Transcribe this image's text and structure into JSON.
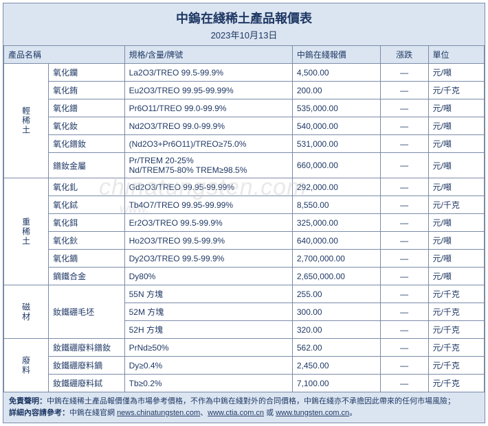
{
  "title": "中鎢在綫稀土產品報價表",
  "date": "2023年10月13日",
  "columns": [
    "產品名稱",
    "規格/含量/牌號",
    "中鎢在綫報價",
    "漲跌",
    "單位"
  ],
  "watermark1": "chinatungsten.com",
  "watermark2": "www.",
  "categories": [
    {
      "label": "輕稀土",
      "rows": [
        {
          "name": "氧化鑭",
          "spec": "La2O3/TREO 99.5-99.9%",
          "price": "4,500.00",
          "trend": "—",
          "unit": "元/噸"
        },
        {
          "name": "氧化銪",
          "spec": "Eu2O3/TREO 99.95-99.99%",
          "price": "200.00",
          "trend": "—",
          "unit": "元/千克"
        },
        {
          "name": "氧化鐠",
          "spec": "Pr6O11/TREO 99.0-99.9%",
          "price": "535,000.00",
          "trend": "—",
          "unit": "元/噸"
        },
        {
          "name": "氧化釹",
          "spec": "Nd2O3/TREO 99.0-99.9%",
          "price": "540,000.00",
          "trend": "—",
          "unit": "元/噸"
        },
        {
          "name": "氧化鐠釹",
          "spec": "(Nd2O3+Pr6O11)/TREO≥75.0%",
          "price": "531,000.00",
          "trend": "—",
          "unit": "元/噸"
        },
        {
          "name": "鐠釹金屬",
          "spec": "Pr/TREM 20-25%\nNd/TREM75-80% TREM≥98.5%",
          "price": "660,000.00",
          "trend": "—",
          "unit": "元/噸"
        }
      ]
    },
    {
      "label": "重稀土",
      "rows": [
        {
          "name": "氧化釓",
          "spec": "Gd2O3/TREO 99.95-99.99%",
          "price": "292,000.00",
          "trend": "—",
          "unit": "元/噸"
        },
        {
          "name": "氧化鋱",
          "spec": "Tb4O7/TREO 99.95-99.99%",
          "price": "8,550.00",
          "trend": "—",
          "unit": "元/千克"
        },
        {
          "name": "氧化鉺",
          "spec": "Er2O3/TREO 99.5-99.9%",
          "price": "325,000.00",
          "trend": "—",
          "unit": "元/噸"
        },
        {
          "name": "氧化鈥",
          "spec": "Ho2O3/TREO 99.5-99.9%",
          "price": "640,000.00",
          "trend": "—",
          "unit": "元/噸"
        },
        {
          "name": "氧化鏑",
          "spec": "Dy2O3/TREO 99.5-99.9%",
          "price": "2,700,000.00",
          "trend": "—",
          "unit": "元/噸"
        },
        {
          "name": "鏑鐵合金",
          "spec": "Dy80%",
          "price": "2,650,000.00",
          "trend": "—",
          "unit": "元/噸"
        }
      ]
    },
    {
      "label": "磁材",
      "rows": [
        {
          "name": "釹鐵硼毛坯",
          "spec": "55N 方塊",
          "price": "255.00",
          "trend": "—",
          "unit": "元/千克",
          "rowspan": 3
        },
        {
          "name": "",
          "spec": "52M 方塊",
          "price": "300.00",
          "trend": "—",
          "unit": "元/千克"
        },
        {
          "name": "",
          "spec": "52H 方塊",
          "price": "320.00",
          "trend": "—",
          "unit": "元/千克"
        }
      ]
    },
    {
      "label": "廢料",
      "rows": [
        {
          "name": "釹鐵硼廢料鐠釹",
          "spec": "PrNd≥50%",
          "price": "562.00",
          "trend": "—",
          "unit": "元/千克"
        },
        {
          "name": "釹鐵硼廢料鏑",
          "spec": "Dy≥0.4%",
          "price": "2,450.00",
          "trend": "—",
          "unit": "元/千克"
        },
        {
          "name": "釹鐵硼廢料鋱",
          "spec": "Tb≥0.2%",
          "price": "7,100.00",
          "trend": "—",
          "unit": "元/千克"
        }
      ]
    }
  ],
  "footer": {
    "line1_label": "免責聲明：",
    "line1_text": "中鎢在綫稀土產品報價僅為市場參考價格，不作為中鎢在綫對外的合同價格，中鎢在綫亦不承擔因此帶來的任何市場風險；",
    "line2_label": "詳細內容請參考：",
    "line2_text": "中鎢在綫官網 ",
    "link1": "news.chinatungsten.com",
    "sep1": "、",
    "link2": "www.ctia.com.cn",
    "sep2": " 或 ",
    "link3": "www.tungsten.com.cn",
    "tail": "。"
  }
}
